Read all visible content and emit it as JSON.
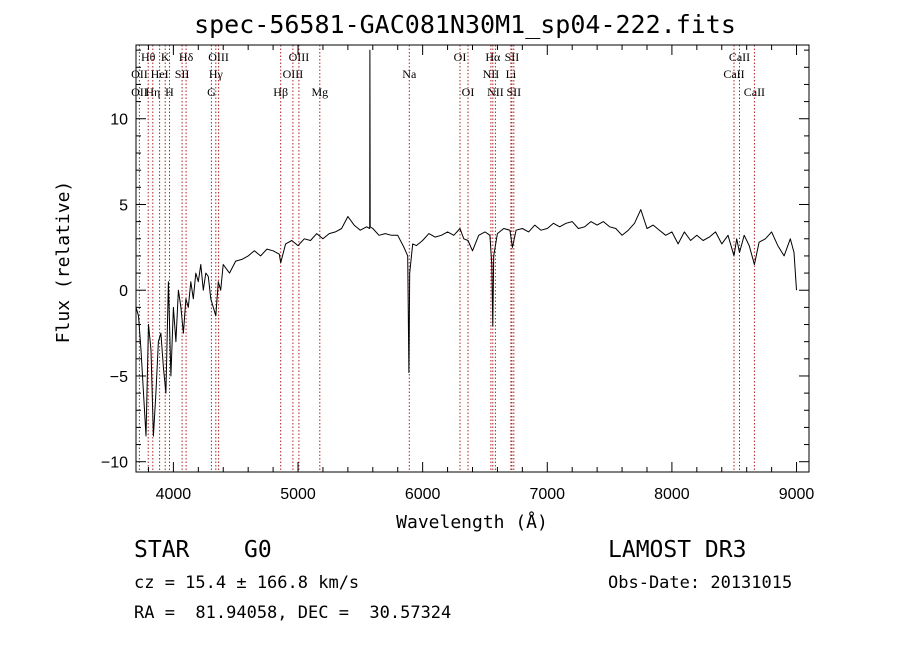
{
  "chart_data": {
    "type": "line",
    "title": "spec-56581-GAC081N30M1_sp04-222.fits",
    "xlabel": "Wavelength (Å)",
    "ylabel": "Flux (relative)",
    "xlim": [
      3700,
      9100
    ],
    "ylim": [
      -10.6,
      14.3
    ],
    "xticks": [
      {
        "value": 4000,
        "label": "4000"
      },
      {
        "value": 5000,
        "label": "5000"
      },
      {
        "value": 6000,
        "label": "6000"
      },
      {
        "value": 7000,
        "label": "7000"
      },
      {
        "value": 8000,
        "label": "8000"
      },
      {
        "value": 9000,
        "label": "9000"
      }
    ],
    "yticks": [
      {
        "value": -10,
        "label": "−10"
      },
      {
        "value": -5,
        "label": "−5"
      },
      {
        "value": 0,
        "label": "0"
      },
      {
        "value": 5,
        "label": "5"
      },
      {
        "value": 10,
        "label": "10"
      }
    ],
    "series": [
      {
        "name": "flux",
        "points": [
          [
            3700,
            -1.0
          ],
          [
            3720,
            -1.5
          ],
          [
            3740,
            -3.5
          ],
          [
            3760,
            -6.0
          ],
          [
            3780,
            -8.5
          ],
          [
            3800,
            -2.0
          ],
          [
            3820,
            -3.5
          ],
          [
            3840,
            -8.5
          ],
          [
            3860,
            -6.0
          ],
          [
            3880,
            -3.0
          ],
          [
            3900,
            -2.5
          ],
          [
            3920,
            -4.5
          ],
          [
            3940,
            -6.0
          ],
          [
            3960,
            0.5
          ],
          [
            3980,
            -5.0
          ],
          [
            4000,
            -1.0
          ],
          [
            4020,
            -3.0
          ],
          [
            4040,
            0.0
          ],
          [
            4060,
            -1.0
          ],
          [
            4080,
            -2.5
          ],
          [
            4100,
            -0.5
          ],
          [
            4120,
            -1.0
          ],
          [
            4140,
            0.5
          ],
          [
            4160,
            -0.5
          ],
          [
            4180,
            1.0
          ],
          [
            4200,
            0.5
          ],
          [
            4220,
            1.5
          ],
          [
            4240,
            0.0
          ],
          [
            4260,
            1.0
          ],
          [
            4280,
            0.8
          ],
          [
            4300,
            -0.5
          ],
          [
            4320,
            -1.0
          ],
          [
            4340,
            -1.5
          ],
          [
            4360,
            0.5
          ],
          [
            4380,
            0.0
          ],
          [
            4400,
            1.5
          ],
          [
            4450,
            1.0
          ],
          [
            4500,
            1.7
          ],
          [
            4550,
            1.8
          ],
          [
            4600,
            2.0
          ],
          [
            4650,
            2.3
          ],
          [
            4700,
            2.0
          ],
          [
            4750,
            2.4
          ],
          [
            4800,
            2.3
          ],
          [
            4850,
            2.1
          ],
          [
            4861,
            1.6
          ],
          [
            4900,
            2.7
          ],
          [
            4950,
            2.9
          ],
          [
            5000,
            2.6
          ],
          [
            5050,
            3.0
          ],
          [
            5100,
            2.9
          ],
          [
            5150,
            3.3
          ],
          [
            5200,
            3.0
          ],
          [
            5250,
            3.3
          ],
          [
            5300,
            3.4
          ],
          [
            5350,
            3.6
          ],
          [
            5400,
            4.3
          ],
          [
            5450,
            3.8
          ],
          [
            5500,
            3.5
          ],
          [
            5550,
            3.7
          ],
          [
            5575,
            3.6
          ],
          [
            5577,
            14.0
          ],
          [
            5579,
            3.7
          ],
          [
            5600,
            3.6
          ],
          [
            5650,
            3.2
          ],
          [
            5700,
            3.3
          ],
          [
            5750,
            3.2
          ],
          [
            5800,
            3.2
          ],
          [
            5850,
            2.5
          ],
          [
            5880,
            2.0
          ],
          [
            5890,
            -4.8
          ],
          [
            5896,
            1.0
          ],
          [
            5920,
            2.7
          ],
          [
            5950,
            2.6
          ],
          [
            6000,
            2.9
          ],
          [
            6050,
            3.3
          ],
          [
            6100,
            3.1
          ],
          [
            6150,
            3.2
          ],
          [
            6200,
            3.4
          ],
          [
            6250,
            3.2
          ],
          [
            6300,
            3.6
          ],
          [
            6330,
            3.0
          ],
          [
            6364,
            2.9
          ],
          [
            6400,
            2.3
          ],
          [
            6450,
            3.2
          ],
          [
            6500,
            3.4
          ],
          [
            6540,
            3.2
          ],
          [
            6555,
            1.5
          ],
          [
            6563,
            -2.1
          ],
          [
            6570,
            2.0
          ],
          [
            6600,
            3.3
          ],
          [
            6650,
            3.6
          ],
          [
            6700,
            3.5
          ],
          [
            6720,
            2.5
          ],
          [
            6750,
            3.5
          ],
          [
            6800,
            3.6
          ],
          [
            6850,
            3.4
          ],
          [
            6900,
            3.8
          ],
          [
            6950,
            3.5
          ],
          [
            7000,
            3.6
          ],
          [
            7050,
            3.9
          ],
          [
            7100,
            3.7
          ],
          [
            7150,
            3.9
          ],
          [
            7200,
            4.0
          ],
          [
            7250,
            3.6
          ],
          [
            7300,
            3.7
          ],
          [
            7350,
            4.0
          ],
          [
            7400,
            3.8
          ],
          [
            7450,
            4.0
          ],
          [
            7500,
            3.7
          ],
          [
            7550,
            3.6
          ],
          [
            7600,
            3.2
          ],
          [
            7650,
            3.5
          ],
          [
            7700,
            3.9
          ],
          [
            7750,
            4.7
          ],
          [
            7800,
            3.6
          ],
          [
            7850,
            3.8
          ],
          [
            7900,
            3.5
          ],
          [
            7950,
            3.2
          ],
          [
            8000,
            3.4
          ],
          [
            8050,
            2.7
          ],
          [
            8100,
            3.4
          ],
          [
            8150,
            2.9
          ],
          [
            8200,
            3.2
          ],
          [
            8250,
            2.9
          ],
          [
            8300,
            3.1
          ],
          [
            8350,
            3.4
          ],
          [
            8400,
            2.7
          ],
          [
            8450,
            3.2
          ],
          [
            8498,
            2.0
          ],
          [
            8520,
            3.0
          ],
          [
            8542,
            2.2
          ],
          [
            8580,
            3.2
          ],
          [
            8620,
            2.6
          ],
          [
            8662,
            1.5
          ],
          [
            8700,
            2.8
          ],
          [
            8750,
            3.0
          ],
          [
            8800,
            3.4
          ],
          [
            8850,
            2.6
          ],
          [
            8900,
            2.0
          ],
          [
            8950,
            3.0
          ],
          [
            8980,
            2.2
          ],
          [
            9000,
            0.0
          ]
        ]
      }
    ],
    "lines": [
      {
        "label": "Hθ",
        "wavelength": 3798,
        "row": 1
      },
      {
        "label": "OII",
        "wavelength": 3727,
        "row": 2
      },
      {
        "label": "OII",
        "wavelength": 3727,
        "row": 3
      },
      {
        "label": "Hη",
        "wavelength": 3835,
        "row": 3
      },
      {
        "label": "K",
        "wavelength": 3934,
        "row": 1
      },
      {
        "label": "HeI",
        "wavelength": 3889,
        "row": 2
      },
      {
        "label": "H",
        "wavelength": 3969,
        "row": 3
      },
      {
        "label": "SII",
        "wavelength": 4070,
        "row": 2
      },
      {
        "label": "Hδ",
        "wavelength": 4102,
        "row": 1
      },
      {
        "label": "OIII",
        "wavelength": 4363,
        "row": 1
      },
      {
        "label": "Hγ",
        "wavelength": 4340,
        "row": 2
      },
      {
        "label": "G",
        "wavelength": 4305,
        "row": 3
      },
      {
        "label": "OIII",
        "wavelength": 5007,
        "row": 1
      },
      {
        "label": "OIII",
        "wavelength": 4959,
        "row": 2
      },
      {
        "label": "Hβ",
        "wavelength": 4861,
        "row": 3
      },
      {
        "label": "Mg",
        "wavelength": 5175,
        "row": 3
      },
      {
        "label": "Na",
        "wavelength": 5893,
        "row": 2
      },
      {
        "label": "OI",
        "wavelength": 6300,
        "row": 1
      },
      {
        "label": "OI",
        "wavelength": 6364,
        "row": 3
      },
      {
        "label": "Hα",
        "wavelength": 6563,
        "row": 1
      },
      {
        "label": "SII",
        "wavelength": 6716,
        "row": 1
      },
      {
        "label": "NII",
        "wavelength": 6548,
        "row": 2
      },
      {
        "label": "Li",
        "wavelength": 6708,
        "row": 2
      },
      {
        "label": "NII",
        "wavelength": 6584,
        "row": 3
      },
      {
        "label": "SII",
        "wavelength": 6731,
        "row": 3
      },
      {
        "label": "CaII",
        "wavelength": 8542,
        "row": 1
      },
      {
        "label": "CaII",
        "wavelength": 8498,
        "row": 2
      },
      {
        "label": "CaII",
        "wavelength": 8662,
        "row": 3
      }
    ]
  },
  "info": {
    "class": "STAR",
    "subclass": "G0",
    "survey": "LAMOST DR3",
    "cz": "cz = 15.4 ± 166.8 km/s",
    "obs_date": "Obs-Date: 20131015",
    "coords": "RA =  81.94058, DEC =  30.57324"
  },
  "colors": {
    "line_marker": "#b22222",
    "spectrum": "#000000",
    "axis": "#000000"
  }
}
